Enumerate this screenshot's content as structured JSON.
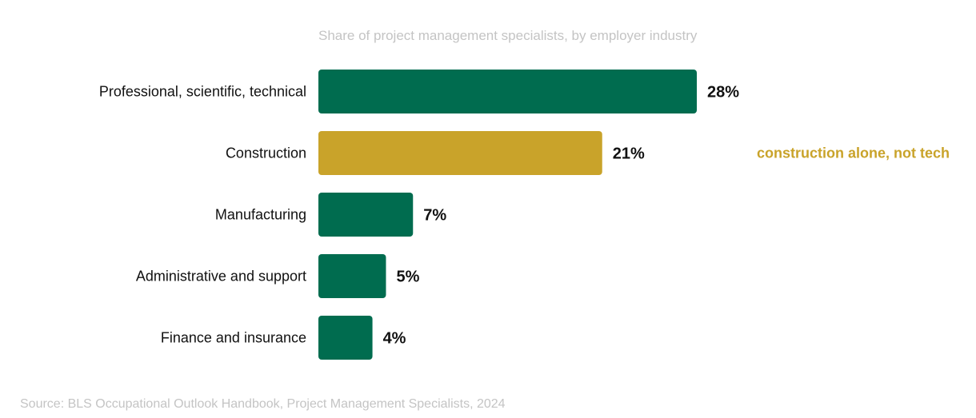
{
  "chart_data": {
    "type": "bar",
    "orientation": "horizontal",
    "title": "",
    "subtitle": "Share of project management specialists, by employer industry",
    "categories": [
      "Professional, scientific, technical",
      "Construction",
      "Manufacturing",
      "Administrative and support",
      "Finance and insurance"
    ],
    "values": [
      28,
      21,
      7,
      5,
      4
    ],
    "value_labels": [
      "28%",
      "21%",
      "7%",
      "5%",
      "4%"
    ],
    "unit": "%",
    "xlim": [
      0,
      28
    ],
    "grid": false,
    "legend": "none",
    "colors": {
      "default": "#006c4f",
      "highlight": "#c9a32a"
    },
    "highlight_index": 1,
    "annotation": {
      "category": "Construction",
      "text": "construction alone, not tech",
      "color": "#c9a32a"
    },
    "source": "Source: BLS Occupational Outlook Handbook, Project Management Specialists, 2024"
  }
}
